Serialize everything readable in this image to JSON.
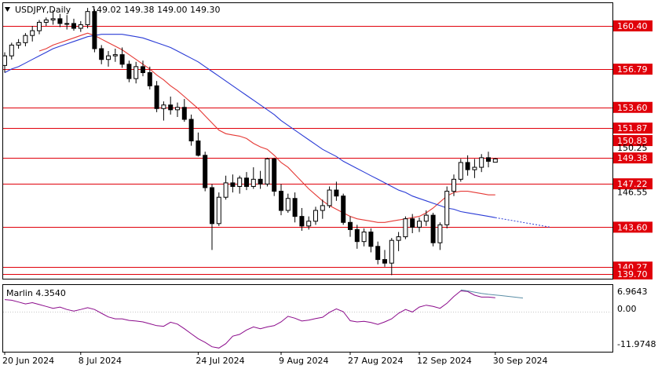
{
  "header": {
    "symbol": "USDJPY,Daily",
    "ohlc": "149.02 149.38 149.00 149.30",
    "arrow_icon": "triangle-down-icon"
  },
  "oscillator": {
    "label": "Marlin 4.3540",
    "scale": [
      "6.9643",
      "0.00",
      "-11.9748"
    ]
  },
  "colors": {
    "background": "#ffffff",
    "frame": "#000000",
    "level_line": "#e0000a",
    "level_label_bg": "#e0000a",
    "ma_fast": "#e53935",
    "ma_slow": "#2a3bd6",
    "oscillator": "#8b0a8b",
    "oscillator_signal": "#5b8ea6",
    "candle_bull": "#ffffff",
    "candle_bear": "#000000"
  },
  "chart_data": [
    {
      "type": "candlestick",
      "title": "USDJPY,Daily",
      "x_tick_labels": [
        "20 Jun 2024",
        "8 Jul 2024",
        "24 Jul 2024",
        "9 Aug 2024",
        "27 Aug 2024",
        "12 Sep 2024",
        "30 Sep 2024"
      ],
      "y_tick_labels": [
        "160.40",
        "156.79",
        "153.60",
        "151.87",
        "150.83",
        "150.25",
        "149.38",
        "147.22",
        "146.55",
        "143.60",
        "140.27",
        "139.70"
      ],
      "ylim": [
        139.3,
        162.3
      ],
      "horizontal_levels": [
        160.4,
        156.79,
        153.6,
        151.87,
        149.38,
        147.22,
        143.6,
        140.27,
        139.7
      ],
      "last_values": {
        "open": 149.02,
        "high": 149.38,
        "low": 149.0,
        "close": 149.3
      },
      "candles": [
        [
          157.1,
          158.2,
          156.5,
          157.9
        ],
        [
          157.9,
          159.0,
          157.6,
          158.8
        ],
        [
          158.8,
          159.3,
          158.5,
          159.0
        ],
        [
          159.0,
          159.8,
          158.7,
          159.6
        ],
        [
          159.6,
          160.4,
          159.1,
          160.0
        ],
        [
          160.0,
          160.9,
          159.7,
          160.7
        ],
        [
          160.7,
          161.1,
          160.4,
          160.9
        ],
        [
          160.9,
          161.7,
          160.5,
          161.0
        ],
        [
          161.0,
          161.4,
          160.3,
          160.6
        ],
        [
          160.6,
          161.3,
          160.1,
          160.6
        ],
        [
          160.6,
          161.0,
          160.0,
          160.2
        ],
        [
          160.2,
          160.8,
          159.9,
          160.5
        ],
        [
          160.5,
          161.9,
          160.2,
          161.6
        ],
        [
          161.6,
          161.8,
          158.2,
          158.5
        ],
        [
          158.5,
          158.8,
          157.2,
          157.6
        ],
        [
          157.6,
          158.3,
          157.0,
          157.9
        ],
        [
          157.9,
          158.5,
          157.4,
          158.0
        ],
        [
          158.0,
          158.6,
          156.9,
          157.2
        ],
        [
          157.2,
          157.5,
          155.7,
          156.0
        ],
        [
          156.0,
          157.4,
          155.6,
          157.0
        ],
        [
          157.0,
          157.5,
          156.2,
          156.5
        ],
        [
          156.5,
          157.0,
          155.1,
          155.4
        ],
        [
          155.4,
          155.8,
          153.2,
          153.5
        ],
        [
          153.5,
          154.1,
          152.5,
          153.8
        ],
        [
          153.8,
          154.5,
          153.0,
          153.4
        ],
        [
          153.4,
          154.0,
          152.8,
          153.6
        ],
        [
          153.6,
          154.3,
          152.4,
          152.6
        ],
        [
          152.6,
          153.0,
          150.4,
          150.8
        ],
        [
          150.8,
          151.5,
          149.5,
          149.6
        ],
        [
          149.6,
          149.9,
          146.6,
          146.9
        ],
        [
          146.9,
          147.2,
          141.7,
          143.9
        ],
        [
          143.9,
          146.5,
          143.7,
          146.1
        ],
        [
          146.1,
          147.9,
          145.9,
          147.3
        ],
        [
          147.3,
          148.0,
          146.5,
          147.0
        ],
        [
          147.0,
          147.9,
          146.4,
          147.7
        ],
        [
          147.7,
          148.2,
          146.7,
          147.0
        ],
        [
          147.0,
          148.6,
          146.8,
          147.6
        ],
        [
          147.6,
          148.3,
          146.8,
          147.2
        ],
        [
          147.2,
          149.4,
          147.0,
          149.3
        ],
        [
          149.3,
          149.4,
          146.2,
          146.6
        ],
        [
          146.6,
          147.2,
          144.6,
          145.0
        ],
        [
          145.0,
          146.4,
          144.8,
          146.0
        ],
        [
          146.0,
          146.5,
          144.0,
          144.5
        ],
        [
          144.5,
          145.2,
          143.3,
          143.7
        ],
        [
          143.7,
          144.5,
          143.4,
          144.1
        ],
        [
          144.1,
          145.3,
          143.8,
          145.0
        ],
        [
          145.0,
          145.9,
          144.3,
          145.4
        ],
        [
          145.4,
          147.0,
          145.2,
          146.7
        ],
        [
          146.7,
          147.4,
          145.8,
          146.2
        ],
        [
          146.2,
          146.4,
          143.8,
          144.0
        ],
        [
          144.0,
          144.5,
          142.8,
          143.4
        ],
        [
          143.4,
          143.8,
          141.8,
          142.4
        ],
        [
          142.4,
          143.5,
          142.0,
          143.2
        ],
        [
          143.2,
          143.5,
          141.5,
          142.0
        ],
        [
          142.0,
          142.4,
          140.5,
          140.9
        ],
        [
          140.9,
          141.7,
          140.3,
          140.6
        ],
        [
          140.6,
          142.7,
          139.6,
          142.5
        ],
        [
          142.5,
          143.2,
          141.6,
          142.8
        ],
        [
          142.8,
          144.5,
          142.6,
          144.3
        ],
        [
          144.3,
          144.7,
          143.1,
          143.6
        ],
        [
          143.6,
          144.4,
          143.2,
          144.1
        ],
        [
          144.1,
          145.0,
          143.7,
          144.6
        ],
        [
          144.6,
          144.8,
          142.0,
          142.3
        ],
        [
          142.3,
          144.0,
          141.7,
          143.8
        ],
        [
          143.8,
          147.0,
          143.5,
          146.6
        ],
        [
          146.6,
          148.0,
          146.2,
          147.6
        ],
        [
          147.6,
          149.3,
          147.4,
          149.0
        ],
        [
          149.0,
          149.6,
          147.9,
          148.4
        ],
        [
          148.4,
          149.3,
          147.7,
          148.6
        ],
        [
          148.6,
          149.7,
          148.2,
          149.4
        ],
        [
          149.4,
          149.9,
          148.6,
          149.1
        ],
        [
          149.02,
          149.38,
          149.0,
          149.3
        ]
      ],
      "series": [
        {
          "name": "",
          "color": "#e53935",
          "values": [
            null,
            null,
            null,
            null,
            null,
            158.3,
            158.5,
            158.8,
            159.0,
            159.2,
            159.4,
            159.6,
            159.8,
            159.6,
            159.3,
            159.0,
            158.7,
            158.4,
            158.0,
            157.6,
            157.2,
            156.8,
            156.3,
            155.9,
            155.4,
            155.0,
            154.5,
            154.0,
            153.5,
            152.9,
            152.3,
            151.7,
            151.4,
            151.3,
            151.2,
            151.0,
            150.6,
            150.3,
            150.1,
            149.6,
            149.0,
            148.6,
            148.0,
            147.4,
            146.8,
            146.3,
            145.8,
            145.4,
            145.1,
            144.8,
            144.5,
            144.3,
            144.2,
            144.1,
            144.0,
            144.0,
            144.1,
            144.2,
            144.3,
            144.4,
            144.5,
            144.8,
            145.2,
            145.7,
            146.2,
            146.5,
            146.6,
            146.6,
            146.5,
            146.4,
            146.3,
            146.3
          ]
        },
        {
          "name": "",
          "color": "#2a3bd6",
          "values": [
            156.5,
            156.8,
            157.0,
            157.3,
            157.6,
            157.9,
            158.2,
            158.5,
            158.7,
            158.9,
            159.1,
            159.3,
            159.5,
            159.6,
            159.7,
            159.7,
            159.7,
            159.7,
            159.6,
            159.5,
            159.4,
            159.2,
            159.0,
            158.8,
            158.6,
            158.3,
            158.0,
            157.7,
            157.4,
            157.0,
            156.6,
            156.2,
            155.8,
            155.4,
            155.0,
            154.6,
            154.2,
            153.8,
            153.4,
            153.0,
            152.5,
            152.1,
            151.7,
            151.3,
            150.9,
            150.5,
            150.1,
            149.8,
            149.5,
            149.1,
            148.8,
            148.5,
            148.2,
            147.9,
            147.6,
            147.3,
            147.0,
            146.7,
            146.5,
            146.2,
            146.0,
            145.8,
            145.6,
            145.4,
            145.2,
            145.1,
            144.9,
            144.8,
            144.7,
            144.6,
            144.5,
            144.4
          ]
        }
      ]
    },
    {
      "type": "line",
      "title": "Marlin 4.3540",
      "y_tick_labels": [
        "6.9643",
        "0.00",
        "-11.9748"
      ],
      "ylim": [
        -13.0,
        8.5
      ],
      "series": [
        {
          "name": "",
          "color": "#8b0a8b",
          "values": [
            3.8,
            3.6,
            3.0,
            2.4,
            2.8,
            2.2,
            1.6,
            1.0,
            1.4,
            0.6,
            0.1,
            0.6,
            1.2,
            0.6,
            -0.6,
            -1.8,
            -2.4,
            -2.4,
            -2.9,
            -3.1,
            -3.4,
            -4.0,
            -4.6,
            -4.8,
            -3.5,
            -4.1,
            -5.6,
            -7.2,
            -8.8,
            -10.0,
            -11.4,
            -11.8,
            -10.4,
            -8.0,
            -7.4,
            -6.0,
            -5.0,
            -5.6,
            -5.0,
            -4.6,
            -3.4,
            -1.6,
            -2.2,
            -3.1,
            -2.8,
            -2.3,
            -1.9,
            -0.3,
            0.8,
            -0.1,
            -3.0,
            -3.4,
            -3.2,
            -3.6,
            -4.2,
            -3.4,
            -2.4,
            -0.6,
            0.6,
            -0.2,
            1.4,
            2.0,
            1.6,
            1.0,
            2.6,
            4.8,
            6.6,
            6.4,
            5.2,
            4.6,
            4.6,
            4.4
          ]
        },
        {
          "name": "",
          "color": "#5b8ea6",
          "values": [
            null,
            null,
            null,
            null,
            null,
            null,
            null,
            null,
            null,
            null,
            null,
            null,
            null,
            null,
            null,
            null,
            null,
            null,
            null,
            null,
            null,
            null,
            null,
            null,
            null,
            null,
            null,
            null,
            null,
            null,
            null,
            null,
            null,
            null,
            null,
            null,
            null,
            null,
            null,
            null,
            null,
            null,
            null,
            null,
            null,
            null,
            null,
            null,
            null,
            null,
            null,
            null,
            null,
            null,
            null,
            null,
            null,
            null,
            null,
            null,
            null,
            null,
            null,
            null,
            null,
            null,
            6.9,
            6.6,
            6.2,
            5.8,
            5.5,
            5.3
          ]
        }
      ]
    }
  ]
}
